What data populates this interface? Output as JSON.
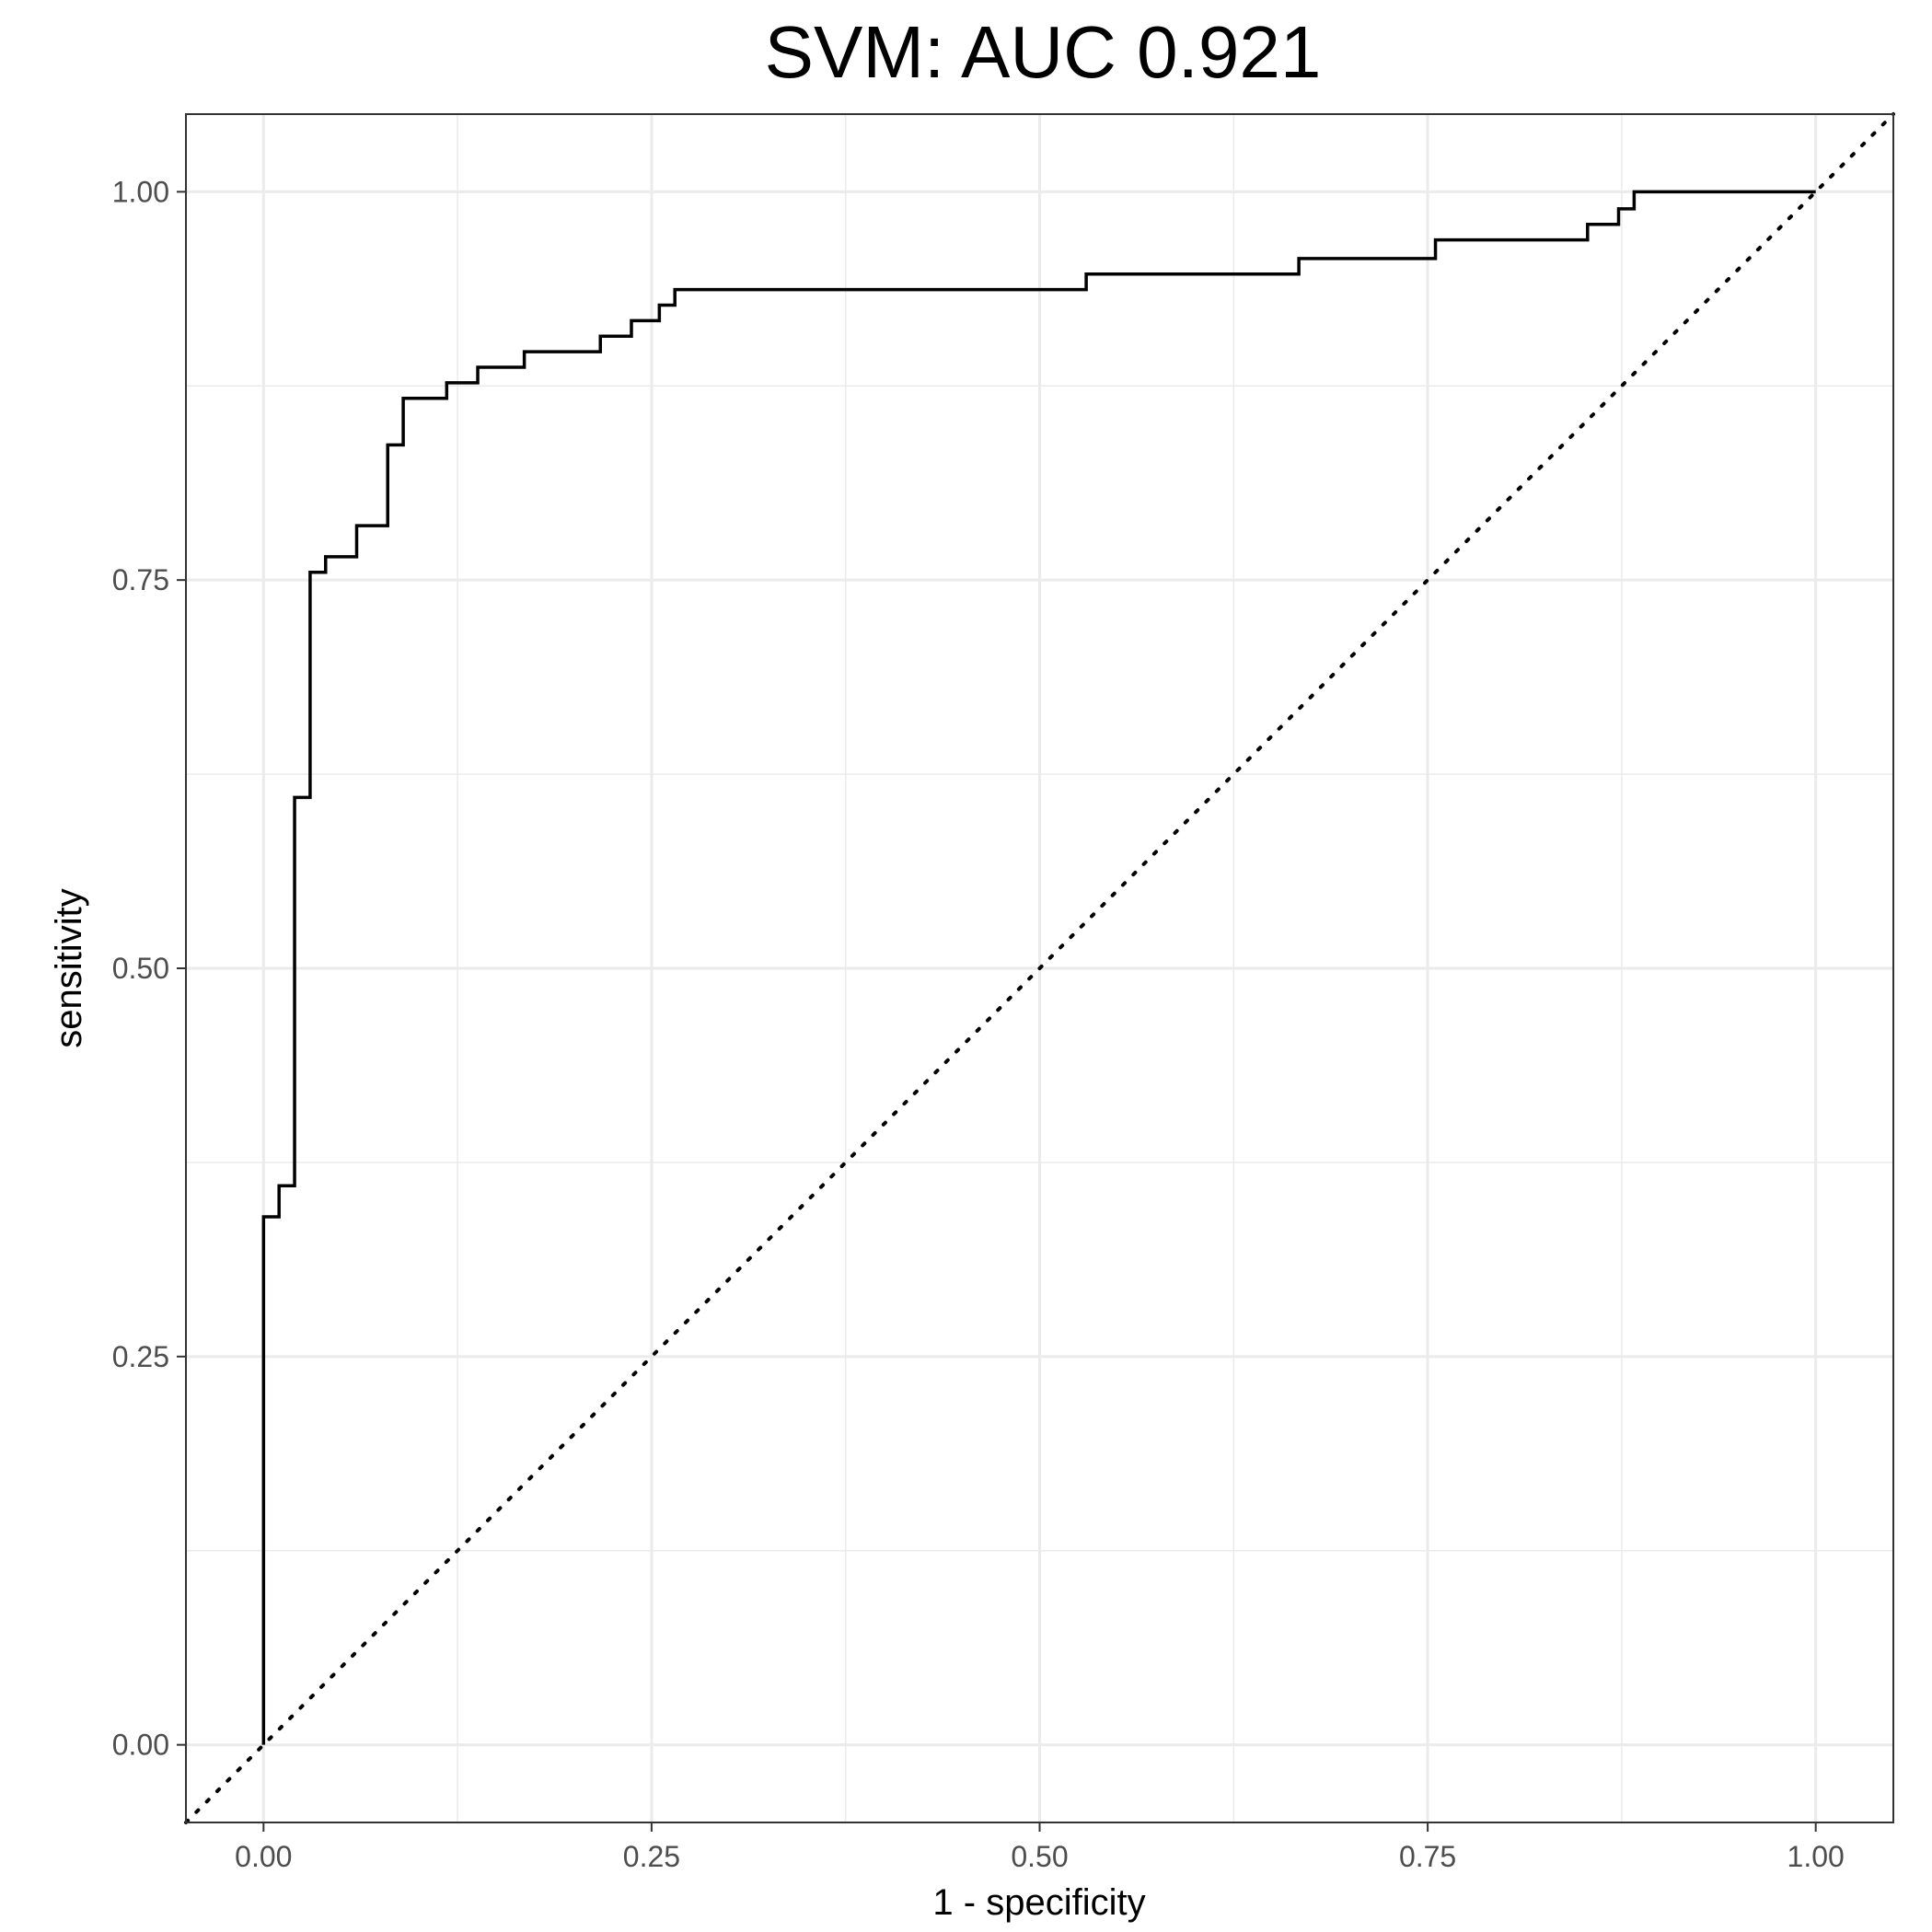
{
  "chart_data": {
    "type": "line",
    "title": "SVM: AUC 0.921",
    "xlabel": "1 - specificity",
    "ylabel": "sensitivity",
    "xlim": [
      -0.05,
      1.05
    ],
    "ylim": [
      -0.05,
      1.05
    ],
    "xticks": [
      0,
      0.25,
      0.5,
      0.75,
      1
    ],
    "xtick_labels": [
      "0.00",
      "0.25",
      "0.50",
      "0.75",
      "1.00"
    ],
    "yticks": [
      0,
      0.25,
      0.5,
      0.75,
      1
    ],
    "ytick_labels": [
      "0.00",
      "0.25",
      "0.50",
      "0.75",
      "1.00"
    ],
    "grid": true,
    "line_color": "#000000",
    "grid_color": "#ebebeb",
    "roc_curve": {
      "step": true,
      "x": [
        0,
        0,
        0.01,
        0.01,
        0.02,
        0.02,
        0.03,
        0.03,
        0.04,
        0.04,
        0.06,
        0.06,
        0.08,
        0.08,
        0.09,
        0.09,
        0.118,
        0.118,
        0.138,
        0.138,
        0.168,
        0.168,
        0.217,
        0.217,
        0.237,
        0.237,
        0.255,
        0.255,
        0.265,
        0.265,
        0.53,
        0.53,
        0.667,
        0.667,
        0.755,
        0.755,
        0.853,
        0.853,
        0.873,
        0.873,
        0.883,
        0.883,
        1.0
      ],
      "y": [
        0,
        0.34,
        0.34,
        0.36,
        0.36,
        0.61,
        0.61,
        0.755,
        0.755,
        0.765,
        0.765,
        0.785,
        0.785,
        0.837,
        0.837,
        0.867,
        0.867,
        0.877,
        0.877,
        0.887,
        0.887,
        0.897,
        0.897,
        0.907,
        0.907,
        0.917,
        0.917,
        0.927,
        0.927,
        0.937,
        0.937,
        0.947,
        0.947,
        0.957,
        0.957,
        0.969,
        0.969,
        0.979,
        0.979,
        0.989,
        0.989,
        1.0,
        1.0
      ]
    },
    "reference_line": {
      "x": [
        -0.05,
        1.05
      ],
      "y": [
        -0.05,
        1.05
      ],
      "style": "dotted"
    }
  }
}
